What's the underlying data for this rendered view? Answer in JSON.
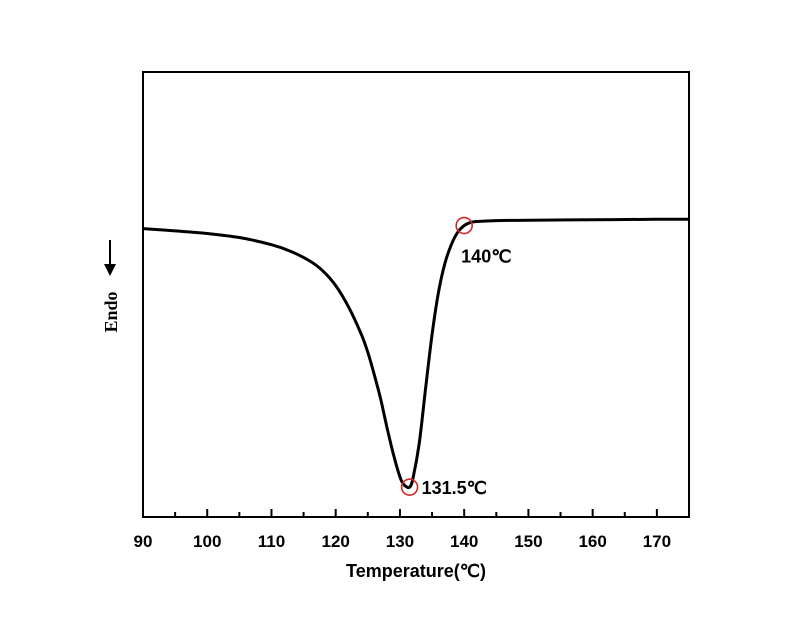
{
  "chart_data": {
    "type": "line",
    "title": "",
    "xlabel": "Temperature(℃)",
    "ylabel": "Endo",
    "ylabel_arrow": "↓",
    "xlim": [
      90,
      175
    ],
    "ylim": [
      0,
      1
    ],
    "xticks": [
      90,
      100,
      110,
      120,
      130,
      140,
      150,
      160,
      170
    ],
    "x_minor_step": 5,
    "y_ticks_shown": false,
    "grid": false,
    "legend": "none",
    "colors": {
      "line": "#000000",
      "marker": "#d62728"
    },
    "series": [
      {
        "x": [
          90,
          95,
          100,
          105,
          110,
          113,
          116,
          118,
          120,
          122,
          124,
          125,
          126,
          127,
          128,
          129,
          130,
          130.5,
          131,
          131.5,
          132,
          133,
          134,
          135,
          136,
          137,
          138,
          139,
          140,
          141,
          142,
          145,
          150,
          160,
          170,
          175
        ],
        "y": [
          0.648,
          0.643,
          0.637,
          0.628,
          0.612,
          0.597,
          0.575,
          0.553,
          0.52,
          0.472,
          0.41,
          0.37,
          0.32,
          0.265,
          0.2,
          0.14,
          0.09,
          0.075,
          0.068,
          0.067,
          0.085,
          0.165,
          0.29,
          0.41,
          0.505,
          0.57,
          0.612,
          0.64,
          0.655,
          0.662,
          0.664,
          0.666,
          0.667,
          0.668,
          0.669,
          0.669
        ]
      }
    ],
    "annotations": [
      {
        "label": "131.5℃",
        "x": 131.5,
        "y": 0.067
      },
      {
        "label": "140℃",
        "x": 140,
        "y": 0.655
      }
    ]
  }
}
